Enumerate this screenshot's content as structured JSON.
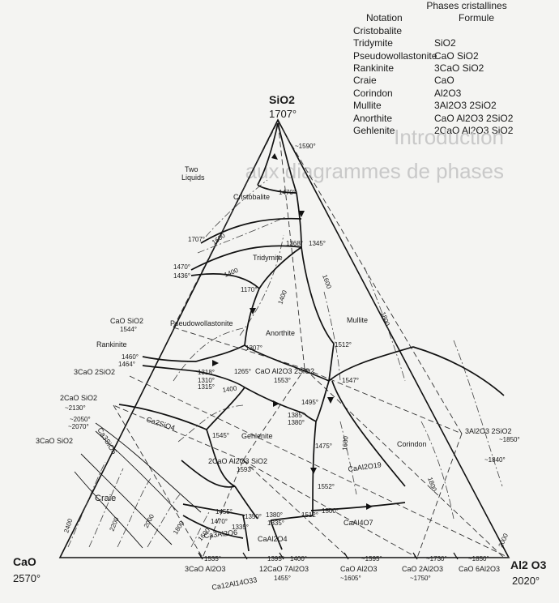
{
  "legend": {
    "title": "Phases cristallines",
    "col_notation": "Notation",
    "col_formula": "Formule",
    "rows": [
      {
        "notation": "Cristobalite",
        "formula": ""
      },
      {
        "notation": "Tridymite",
        "formula": "SiO2"
      },
      {
        "notation": "Pseudowollastonite",
        "formula": "CaO SiO2"
      },
      {
        "notation": "Rankinite",
        "formula": "3CaO SiO2"
      },
      {
        "notation": "Craie",
        "formula": "CaO"
      },
      {
        "notation": "Corindon",
        "formula": "Al2O3"
      },
      {
        "notation": "Mullite",
        "formula": "3Al2O3 2SiO2"
      },
      {
        "notation": "Anorthite",
        "formula": "CaO Al2O3 2SiO2"
      },
      {
        "notation": "Gehlenite",
        "formula": "2CaO Al2O3 SiO2"
      }
    ]
  },
  "vertices": {
    "top": {
      "name": "SiO2",
      "temp": "1707°"
    },
    "left": {
      "name": "CaO",
      "temp": "2570°"
    },
    "right": {
      "name": "Al2 O3",
      "temp": "2020°"
    }
  },
  "fields": [
    "Two Liquids",
    "Cristobalite",
    "Tridymite",
    "Pseudowollastonite",
    "Anorthite",
    "Mullite",
    "Rankinite",
    "Gehlenite",
    "Corindon",
    "Craie",
    "CaAl2O19",
    "CaAl4O7",
    "Ca2SiO4",
    "Ca3SiO5",
    "Ca3Al2O6",
    "CaAl2O4",
    "Ca12Al14O33"
  ],
  "compounds": [
    "CaO SiO2",
    "3CaO 2SiO2",
    "2CaO SiO2",
    "3CaO SiO2",
    "CaO Al2O3 2SiO2",
    "2CaO Al2O3 SiO2",
    "3Al2O3 2SiO2",
    "3CaO Al2O3",
    "12CaO 7Al2O3",
    "CaO Al2O3",
    "CaO 2Al2O3",
    "CaO 6Al2O3"
  ],
  "temperatures": [
    "~1590°",
    "1470°",
    "1707°",
    "1600",
    "1470°",
    "1436°",
    "1368°",
    "1345°",
    "1400",
    "1170°",
    "1600",
    "1544°",
    "1400",
    "1800",
    "1307°",
    "1512°",
    "1460°",
    "1464°",
    "1318°",
    "1265°",
    "1553°",
    "1310°",
    "1315°",
    "1400",
    "1547°",
    "~2130°",
    "1495°",
    "~2050°",
    "~2070°",
    "1385°",
    "1380°",
    "1545°",
    "1475°",
    "1593°",
    "1600",
    "~1850°",
    "~1840°",
    "1552°",
    "1800",
    "1455°",
    "1350°",
    "1380°",
    "1512°",
    "1500°",
    "1470°",
    "1335°",
    "1335°",
    "2400",
    "2200",
    "2000",
    "1800",
    "1600",
    "1535°",
    "1395°",
    "1400°",
    "1455°",
    "~1595°",
    "~1605°",
    "~1730°",
    "~1750°",
    "~1850°",
    "2000"
  ],
  "ghost_text": [
    "Introduction",
    "aux diagrammes de phases"
  ]
}
